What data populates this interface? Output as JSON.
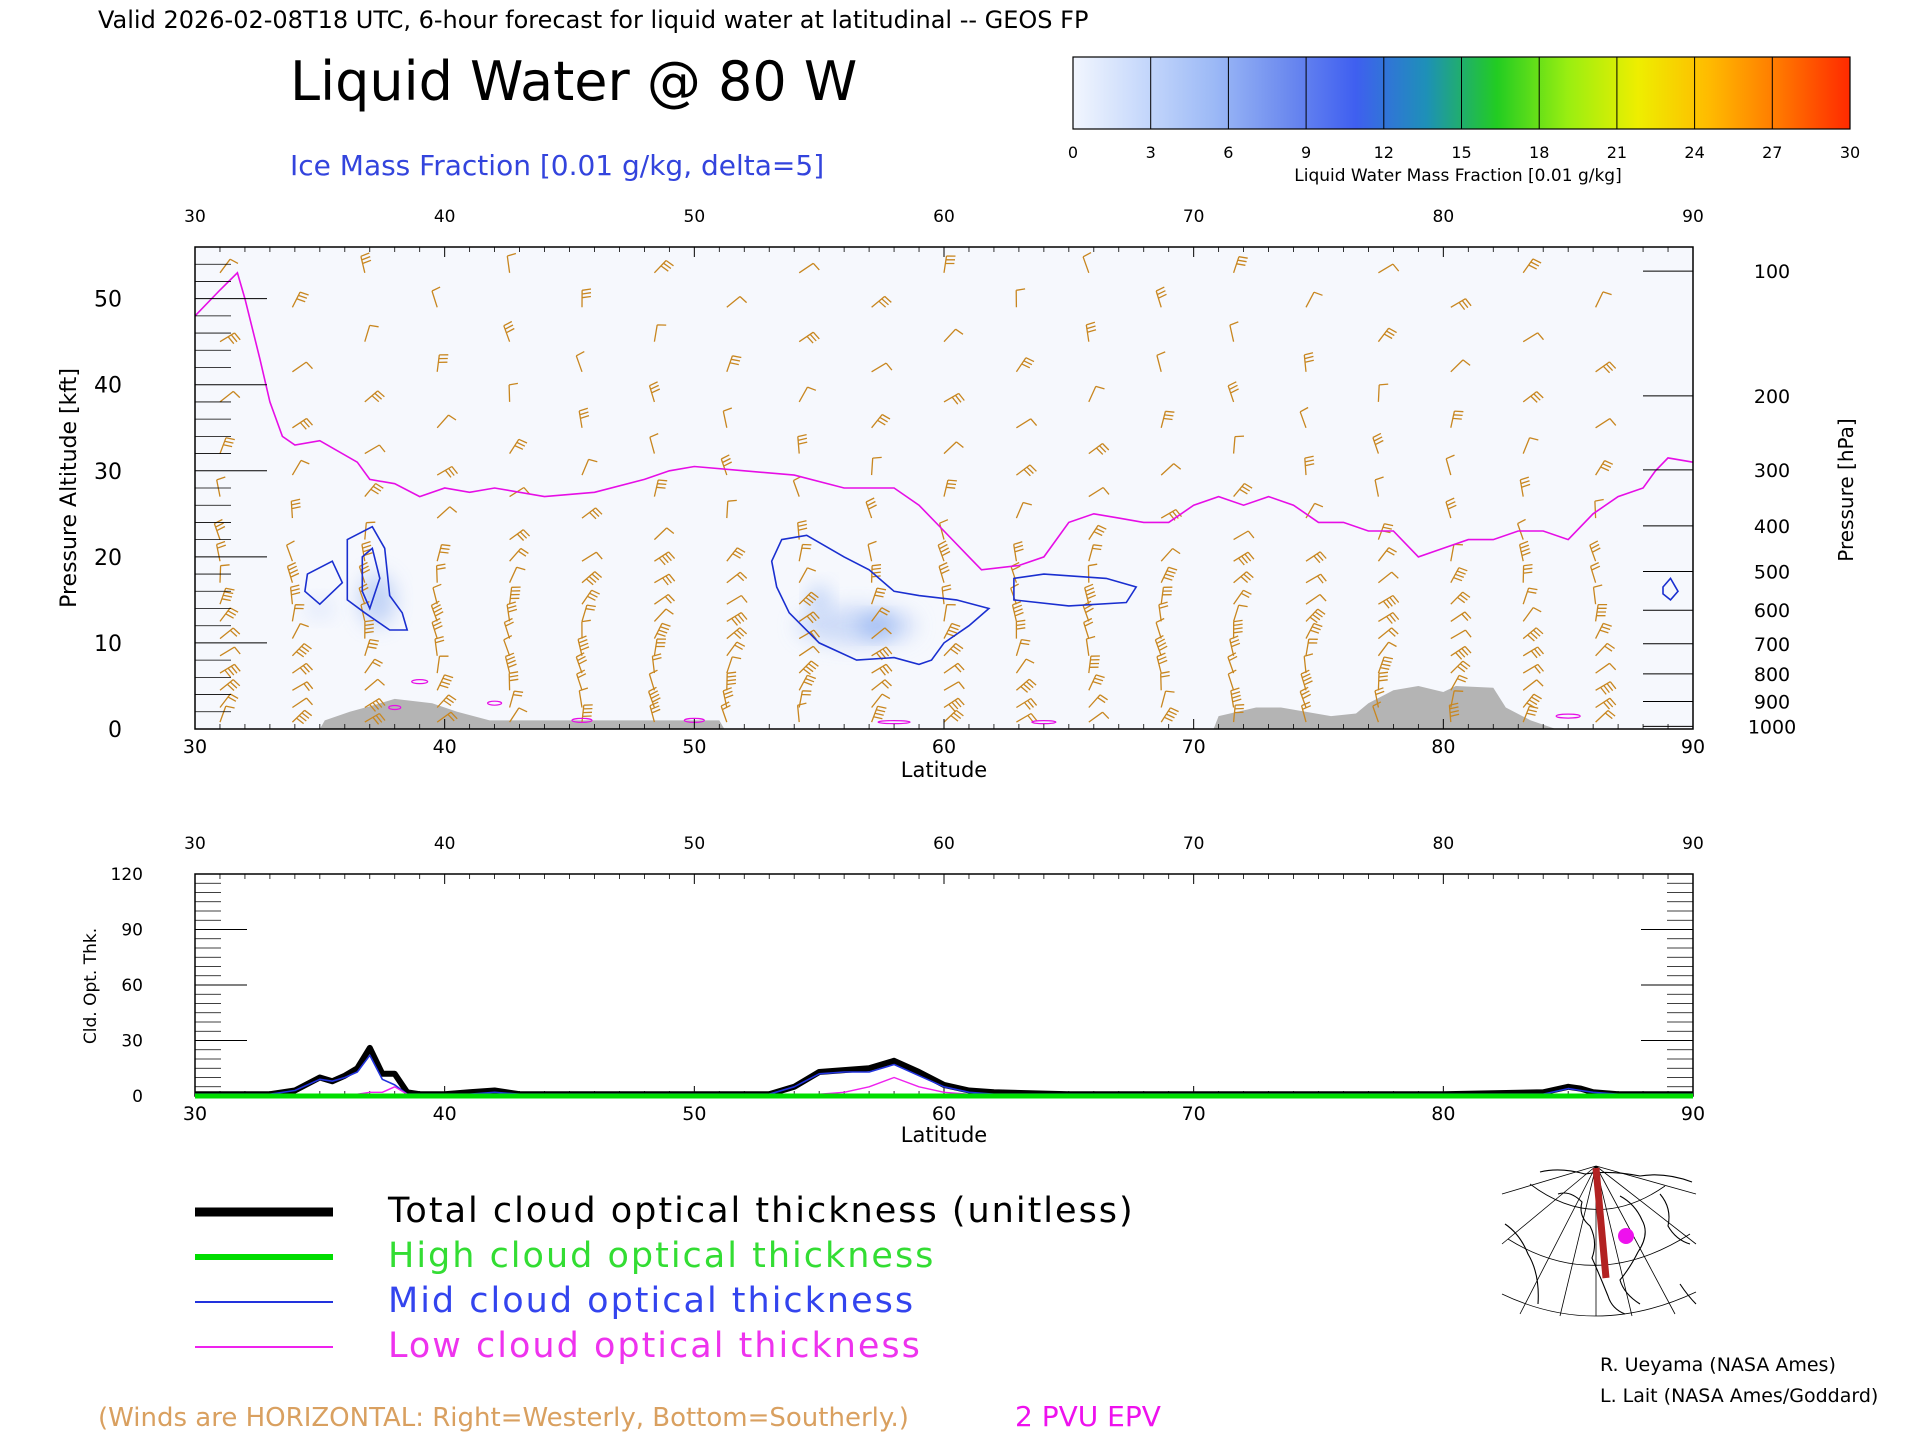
{
  "header": {
    "valid_line": "Valid 2026-02-08T18 UTC, 6-hour forecast for liquid water at latitudinal -- GEOS FP",
    "title": "Liquid Water @ 80 W",
    "subtitle": "Ice Mass Fraction [0.01 g/kg, delta=5]"
  },
  "colorbar": {
    "ticks": [
      "0",
      "3",
      "6",
      "9",
      "12",
      "15",
      "18",
      "21",
      "24",
      "27",
      "30"
    ],
    "label": "Liquid Water Mass Fraction [0.01 g/kg]",
    "colors": [
      "#f2f6fe",
      "#c6d8fb",
      "#9cb9f6",
      "#6e8cef",
      "#3f5ff0",
      "#1e90b8",
      "#22cc22",
      "#99ee11",
      "#eeee00",
      "#ffbb00",
      "#ff7700",
      "#ff2a00"
    ]
  },
  "colors": {
    "wind_barbs": "#c8861f",
    "epv_line": "#e60ee6",
    "ice_contour": "#1a2fd0",
    "terrain": "#b4b4b4",
    "total_line": "#000000",
    "high_line": "#00dd00",
    "mid_line": "#2233dd",
    "low_line": "#ee22ee"
  },
  "chart_data": [
    {
      "type": "heatmap",
      "title": "Liquid Water @ 80 W",
      "xlabel": "Latitude",
      "ylabel": "Pressure Altitude [kft]",
      "ylabel_right": "Pressure [hPa]",
      "xlim": [
        30,
        90
      ],
      "ylim": [
        0,
        56
      ],
      "x_ticks": [
        "30",
        "40",
        "50",
        "60",
        "70",
        "80",
        "90"
      ],
      "y_ticks": [
        "0",
        "10",
        "20",
        "30",
        "40",
        "50"
      ],
      "pressure_ticks": [
        {
          "label": "100",
          "kft": 53.2
        },
        {
          "label": "200",
          "kft": 38.7
        },
        {
          "label": "300",
          "kft": 30.1
        },
        {
          "label": "400",
          "kft": 23.6
        },
        {
          "label": "500",
          "kft": 18.3
        },
        {
          "label": "600",
          "kft": 13.8
        },
        {
          "label": "700",
          "kft": 9.9
        },
        {
          "label": "800",
          "kft": 6.4
        },
        {
          "label": "900",
          "kft": 3.2
        },
        {
          "label": "1000",
          "kft": 0.3
        }
      ],
      "epv_2pvu_line": [
        [
          30,
          48
        ],
        [
          31,
          51
        ],
        [
          31.7,
          53
        ],
        [
          32,
          50
        ],
        [
          32.6,
          43
        ],
        [
          33,
          38
        ],
        [
          33.5,
          34
        ],
        [
          34,
          33
        ],
        [
          35,
          33.5
        ],
        [
          36.5,
          31
        ],
        [
          37,
          29
        ],
        [
          38,
          28.5
        ],
        [
          39,
          27
        ],
        [
          40,
          28
        ],
        [
          41,
          27.5
        ],
        [
          42,
          28
        ],
        [
          44,
          27
        ],
        [
          46,
          27.5
        ],
        [
          48,
          29
        ],
        [
          49,
          30
        ],
        [
          50,
          30.5
        ],
        [
          52,
          30
        ],
        [
          54,
          29.5
        ],
        [
          56,
          28
        ],
        [
          58,
          28
        ],
        [
          59,
          26
        ],
        [
          60,
          23
        ],
        [
          61,
          20
        ],
        [
          61.5,
          18.5
        ],
        [
          63,
          19
        ],
        [
          64,
          20
        ],
        [
          65,
          24
        ],
        [
          66,
          25
        ],
        [
          67,
          24.5
        ],
        [
          68,
          24
        ],
        [
          69,
          24
        ],
        [
          70,
          26
        ],
        [
          71,
          27
        ],
        [
          72,
          26
        ],
        [
          73,
          27
        ],
        [
          74,
          26
        ],
        [
          75,
          24
        ],
        [
          76,
          24
        ],
        [
          77,
          23
        ],
        [
          78,
          23
        ],
        [
          79,
          20
        ],
        [
          80,
          21
        ],
        [
          81,
          22
        ],
        [
          82,
          22
        ],
        [
          83,
          23
        ],
        [
          84,
          23
        ],
        [
          85,
          22
        ],
        [
          86,
          25
        ],
        [
          87,
          27
        ],
        [
          88,
          28
        ],
        [
          88.5,
          30
        ],
        [
          89,
          31.5
        ],
        [
          90,
          31
        ]
      ],
      "ice_contours": [
        {
          "label": "5",
          "points": [
            [
              36.1,
              22
            ],
            [
              37.1,
              23.5
            ],
            [
              37.6,
              21
            ],
            [
              37.8,
              15.5
            ],
            [
              38.3,
              13.5
            ],
            [
              38.5,
              11.5
            ],
            [
              37.8,
              11.5
            ],
            [
              36.8,
              13.5
            ],
            [
              36.1,
              15
            ]
          ]
        },
        {
          "label": "5",
          "points": [
            [
              34.5,
              18
            ],
            [
              35.5,
              19.5
            ],
            [
              35.9,
              17
            ],
            [
              35,
              14.5
            ],
            [
              34.4,
              16
            ]
          ]
        },
        {
          "label": "10",
          "points": [
            [
              36.7,
              20
            ],
            [
              37.1,
              21
            ],
            [
              37.4,
              17.5
            ],
            [
              37,
              14
            ],
            [
              36.7,
              16
            ]
          ]
        },
        {
          "label": "5",
          "points": [
            [
              53.5,
              22
            ],
            [
              54.5,
              22.5
            ],
            [
              56,
              20
            ],
            [
              57,
              18.5
            ],
            [
              58,
              16
            ],
            [
              59,
              15.5
            ],
            [
              60.5,
              15
            ],
            [
              61.8,
              14
            ],
            [
              61,
              12
            ],
            [
              60,
              10
            ],
            [
              59.5,
              8
            ],
            [
              59,
              7.5
            ],
            [
              58,
              8.3
            ],
            [
              56.5,
              8
            ],
            [
              55,
              10
            ],
            [
              53.8,
              13.5
            ],
            [
              53.3,
              16.5
            ],
            [
              53.1,
              19.5
            ]
          ]
        },
        {
          "label": "5",
          "points": [
            [
              62.8,
              17.5
            ],
            [
              64,
              18
            ],
            [
              66.5,
              17.5
            ],
            [
              67.7,
              16.5
            ],
            [
              67.3,
              14.7
            ],
            [
              65,
              14.3
            ],
            [
              62.8,
              15
            ]
          ]
        },
        {
          "label": "5",
          "points": [
            [
              88.8,
              16.5
            ],
            [
              89.1,
              17.5
            ],
            [
              89.4,
              16
            ],
            [
              89.1,
              15
            ],
            [
              88.8,
              15.7
            ]
          ]
        }
      ],
      "terrain_kft": [
        [
          30,
          0
        ],
        [
          35,
          0
        ],
        [
          35.2,
          1
        ],
        [
          36.2,
          2
        ],
        [
          37.2,
          2.8
        ],
        [
          38,
          3.5
        ],
        [
          39.5,
          3
        ],
        [
          40.5,
          2
        ],
        [
          41.8,
          1
        ],
        [
          43,
          1
        ],
        [
          51,
          1
        ],
        [
          51.2,
          0
        ],
        [
          70.8,
          0
        ],
        [
          71,
          1.5
        ],
        [
          72.5,
          2.5
        ],
        [
          73.5,
          2.5
        ],
        [
          75.5,
          1.5
        ],
        [
          76.5,
          1.8
        ],
        [
          77,
          3
        ],
        [
          78,
          4.5
        ],
        [
          79,
          5
        ],
        [
          80,
          4.3
        ],
        [
          80.5,
          5
        ],
        [
          82,
          4.8
        ],
        [
          82.5,
          2.5
        ],
        [
          83.5,
          1
        ],
        [
          84.5,
          0
        ],
        [
          90,
          0
        ]
      ]
    },
    {
      "type": "line",
      "xlabel": "Latitude",
      "ylabel": "Cld. Opt. Thk.",
      "xlim": [
        30,
        90
      ],
      "ylim": [
        0,
        120
      ],
      "x_ticks": [
        "30",
        "40",
        "50",
        "60",
        "70",
        "80",
        "90"
      ],
      "y_ticks": [
        "0",
        "30",
        "60",
        "90",
        "120"
      ],
      "x": [
        30,
        33,
        34,
        35,
        35.5,
        36,
        36.5,
        37,
        37.5,
        38,
        38.5,
        39,
        40,
        41,
        42,
        43,
        50,
        53,
        54,
        55,
        56,
        57,
        58,
        59,
        60,
        61,
        62,
        65,
        70,
        80,
        84,
        85,
        85.5,
        86,
        87,
        90
      ],
      "series": [
        {
          "name": "Total cloud optical thickness (unitless)",
          "values": [
            1,
            1,
            3,
            10,
            8,
            11,
            15,
            26,
            12,
            12,
            2,
            1,
            1,
            2,
            3,
            1,
            1,
            1,
            5,
            13,
            14,
            15,
            19,
            13,
            6,
            3,
            2,
            1,
            1,
            1,
            2,
            5,
            4,
            2,
            1,
            1
          ]
        },
        {
          "name": "High cloud optical thickness",
          "values": [
            0,
            0,
            0,
            0,
            0,
            0,
            0,
            0,
            0,
            0,
            0,
            0,
            0,
            0,
            0,
            0,
            0,
            0,
            0,
            0,
            0,
            0,
            0,
            0,
            0,
            0,
            0,
            0,
            0,
            0,
            0,
            0,
            0,
            0,
            0,
            0
          ]
        },
        {
          "name": "Mid cloud optical thickness",
          "values": [
            1,
            1,
            3,
            9,
            8,
            10,
            13,
            22,
            9,
            6,
            1,
            1,
            1,
            1,
            2,
            1,
            1,
            1,
            5,
            12,
            13,
            13,
            17,
            11,
            5,
            2,
            1,
            1,
            1,
            1,
            1,
            4,
            3,
            2,
            1,
            1
          ]
        },
        {
          "name": "Low cloud optical thickness",
          "values": [
            0,
            0,
            0,
            0,
            0,
            0,
            1,
            2,
            2,
            5,
            1,
            0,
            0,
            1,
            1,
            0,
            0,
            0,
            0,
            1,
            2,
            5,
            10,
            5,
            2,
            1,
            0,
            0,
            0,
            0,
            0,
            1,
            1,
            0,
            0,
            0
          ]
        }
      ]
    }
  ],
  "legend": {
    "total": "Total cloud optical thickness (unitless)",
    "high": "High cloud optical thickness",
    "mid": "Mid cloud optical thickness",
    "low": "Low cloud optical thickness"
  },
  "footer": {
    "winds_note": "(Winds are HORIZONTAL: Right=Westerly, Bottom=Southerly.)",
    "epv_label": "2 PVU EPV",
    "credit1": "R. Ueyama (NASA Ames)",
    "credit2": "L. Lait (NASA Ames/Goddard)"
  }
}
